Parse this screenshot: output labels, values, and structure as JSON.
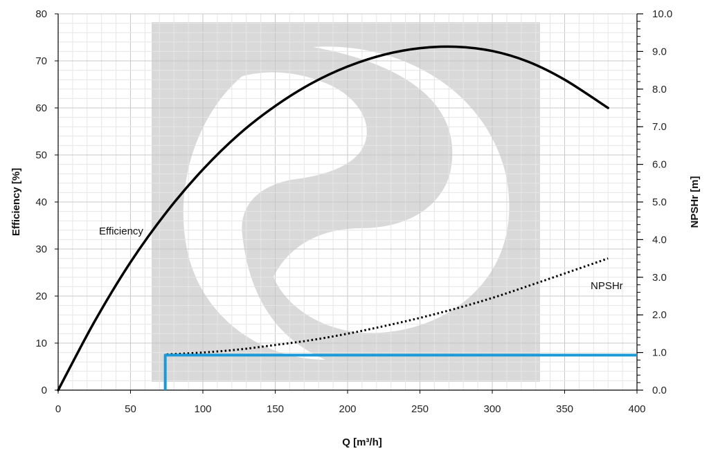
{
  "chart_data": {
    "type": "line",
    "xlabel": "Q  [m³/h]",
    "ylabel_left": "Efficiency  [%]",
    "ylabel_right": "NPSHr [m]",
    "xlim": [
      0,
      400
    ],
    "ylim_left": [
      0,
      80
    ],
    "ylim_right": [
      0,
      10
    ],
    "x_ticks": [
      "0",
      "50",
      "100",
      "150",
      "200",
      "250",
      "300",
      "350",
      "400"
    ],
    "y_left_ticks": [
      "0",
      "10",
      "20",
      "30",
      "40",
      "50",
      "60",
      "70",
      "80"
    ],
    "y_right_ticks": [
      "0.0",
      "1.0",
      "2.0",
      "3.0",
      "4.0",
      "5.0",
      "6.0",
      "7.0",
      "8.0",
      "9.0",
      "10.0"
    ],
    "grid": true,
    "series": [
      {
        "name": "Efficiency",
        "axis": "left",
        "style": "solid",
        "color": "#000000",
        "x": [
          0,
          25,
          50,
          75,
          100,
          125,
          150,
          175,
          200,
          225,
          250,
          275,
          300,
          325,
          350,
          380
        ],
        "y": [
          0,
          14.5,
          27.2,
          37.9,
          46.9,
          54.4,
          60.4,
          65.2,
          68.8,
          71.3,
          72.7,
          73.0,
          72.1,
          69.8,
          66.0,
          60.0
        ]
      },
      {
        "name": "NPSHr",
        "axis": "right",
        "style": "dotted",
        "color": "#000000",
        "x": [
          75,
          100,
          125,
          150,
          175,
          200,
          225,
          250,
          275,
          300,
          325,
          350,
          380
        ],
        "y": [
          0.95,
          1.0,
          1.08,
          1.2,
          1.33,
          1.5,
          1.7,
          1.92,
          2.17,
          2.45,
          2.77,
          3.1,
          3.5
        ]
      },
      {
        "name": "",
        "axis": "right",
        "style": "solid",
        "color": "#1a9ad6",
        "x": [
          74,
          74,
          400
        ],
        "y": [
          0,
          0.93,
          0.93
        ]
      }
    ]
  }
}
